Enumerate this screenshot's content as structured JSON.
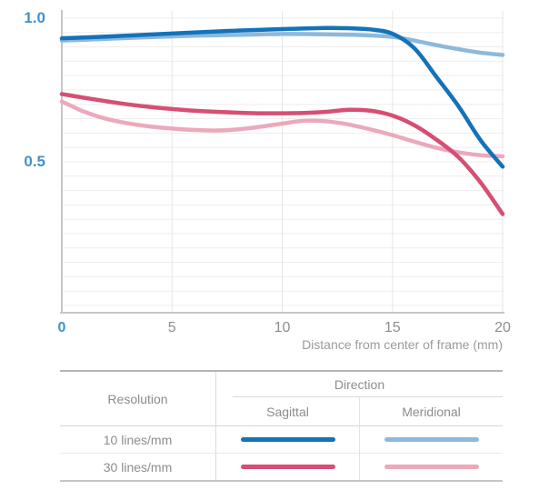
{
  "colors": {
    "accent_tick_blue": "#4191cc",
    "grey_tick": "#8e8e8e",
    "axis_line": "#c6c6c6",
    "grid_horizontal": "#ededed",
    "grid_vertical": "#e7e7e7",
    "xlabel_grey": "#9b9b9b",
    "table_text_grey": "#8c8c8c",
    "curve_10_sagittal": "#1472ba",
    "curve_10_meridional": "#8cb9dc",
    "curve_30_sagittal": "#d64f73",
    "curve_30_meridional": "#eca9bb"
  },
  "axis": {
    "x_ticks": [
      {
        "label": "0",
        "mm": 0,
        "accent": true
      },
      {
        "label": "5",
        "mm": 5,
        "accent": false
      },
      {
        "label": "10",
        "mm": 10,
        "accent": false
      },
      {
        "label": "15",
        "mm": 15,
        "accent": false
      },
      {
        "label": "20",
        "mm": 20,
        "accent": false
      }
    ],
    "y_ticks": [
      {
        "label": "1.0",
        "value": 1.0
      },
      {
        "label": "0.5",
        "value": 0.5
      }
    ],
    "xlabel": "Distance from center of frame (mm)"
  },
  "chart_data": {
    "type": "line",
    "title": "",
    "xlabel": "Distance from center of frame (mm)",
    "ylabel": "",
    "xlim": [
      0,
      20
    ],
    "ylim": [
      0,
      1.0
    ],
    "x_tick_values": [
      0,
      5,
      10,
      15,
      20
    ],
    "y_tick_values": [
      0.5,
      1.0
    ],
    "grid": true,
    "grid_step_y": 0.05,
    "legend_position": "table-below",
    "series": [
      {
        "name": "10 lines/mm Meridional",
        "resolution": "10 lines/mm",
        "direction": "Meridional",
        "color": "#8cb9dc",
        "points": [
          [
            0,
            0.922
          ],
          [
            2,
            0.928
          ],
          [
            4,
            0.934
          ],
          [
            6,
            0.939
          ],
          [
            8,
            0.942
          ],
          [
            10,
            0.945
          ],
          [
            12,
            0.944
          ],
          [
            14,
            0.94
          ],
          [
            15,
            0.935
          ],
          [
            16,
            0.922
          ],
          [
            17,
            0.906
          ],
          [
            18,
            0.892
          ],
          [
            19,
            0.88
          ],
          [
            20,
            0.872
          ]
        ]
      },
      {
        "name": "30 lines/mm Meridional",
        "resolution": "30 lines/mm",
        "direction": "Meridional",
        "color": "#eca9bb",
        "points": [
          [
            0,
            0.71
          ],
          [
            0.5,
            0.692
          ],
          [
            1,
            0.675
          ],
          [
            2,
            0.65
          ],
          [
            3,
            0.634
          ],
          [
            4,
            0.623
          ],
          [
            5,
            0.616
          ],
          [
            6,
            0.611
          ],
          [
            7,
            0.609
          ],
          [
            8,
            0.613
          ],
          [
            9,
            0.622
          ],
          [
            10,
            0.633
          ],
          [
            11,
            0.643
          ],
          [
            12,
            0.641
          ],
          [
            13,
            0.63
          ],
          [
            14,
            0.613
          ],
          [
            15,
            0.593
          ],
          [
            16,
            0.57
          ],
          [
            17,
            0.549
          ],
          [
            18,
            0.533
          ],
          [
            19,
            0.523
          ],
          [
            20,
            0.519
          ]
        ]
      },
      {
        "name": "30 lines/mm Sagittal",
        "resolution": "30 lines/mm",
        "direction": "Sagittal",
        "color": "#d64f73",
        "points": [
          [
            0,
            0.736
          ],
          [
            1,
            0.723
          ],
          [
            2,
            0.711
          ],
          [
            3,
            0.7
          ],
          [
            4,
            0.691
          ],
          [
            5,
            0.684
          ],
          [
            6,
            0.678
          ],
          [
            7,
            0.674
          ],
          [
            8,
            0.671
          ],
          [
            9,
            0.669
          ],
          [
            10,
            0.669
          ],
          [
            11,
            0.67
          ],
          [
            12,
            0.674
          ],
          [
            13,
            0.681
          ],
          [
            14,
            0.678
          ],
          [
            15,
            0.661
          ],
          [
            16,
            0.627
          ],
          [
            17,
            0.577
          ],
          [
            18,
            0.516
          ],
          [
            19,
            0.428
          ],
          [
            20,
            0.318
          ]
        ]
      },
      {
        "name": "10 lines/mm Sagittal",
        "resolution": "10 lines/mm",
        "direction": "Sagittal",
        "color": "#1472ba",
        "points": [
          [
            0,
            0.93
          ],
          [
            2,
            0.936
          ],
          [
            4,
            0.943
          ],
          [
            6,
            0.95
          ],
          [
            8,
            0.957
          ],
          [
            10,
            0.962
          ],
          [
            12,
            0.966
          ],
          [
            13,
            0.965
          ],
          [
            14,
            0.961
          ],
          [
            15,
            0.946
          ],
          [
            16,
            0.895
          ],
          [
            17,
            0.795
          ],
          [
            18,
            0.693
          ],
          [
            19,
            0.575
          ],
          [
            20,
            0.483
          ]
        ]
      }
    ]
  },
  "legend_table": {
    "headers": {
      "resolution": "Resolution",
      "direction": "Direction",
      "sagittal": "Sagittal",
      "meridional": "Meridional"
    },
    "rows": [
      {
        "label": "10 lines/mm",
        "sagittal_color": "#1472ba",
        "meridional_color": "#8cb9dc"
      },
      {
        "label": "30 lines/mm",
        "sagittal_color": "#d64f73",
        "meridional_color": "#eca9bb"
      }
    ]
  }
}
